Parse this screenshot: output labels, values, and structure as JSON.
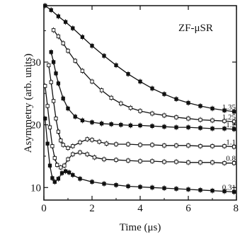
{
  "chart_data": {
    "type": "scatter",
    "title": "",
    "annotation": "ZF-μSR",
    "xlabel": "Time (μs)",
    "ylabel": "Asymmetry (arb. units)",
    "xlim": [
      0,
      8
    ],
    "ylim": [
      8,
      39
    ],
    "xticks": [
      "0",
      "2",
      "4",
      "6",
      "8"
    ],
    "yticks": [
      "10",
      "20",
      "30"
    ],
    "legend": "none",
    "grid": false,
    "series": [
      {
        "label": "1.35",
        "marker": "filled-square",
        "x": [
          0.05,
          0.3,
          0.6,
          0.9,
          1.2,
          1.6,
          2.0,
          2.5,
          3.0,
          3.5,
          4.0,
          4.5,
          5.0,
          5.5,
          6.0,
          6.5,
          7.0,
          7.5,
          7.9
        ],
        "y": [
          39.0,
          38.3,
          37.3,
          36.4,
          35.4,
          34.0,
          32.6,
          31.0,
          29.5,
          28.1,
          26.9,
          25.8,
          24.9,
          24.1,
          23.5,
          23.0,
          22.6,
          22.3,
          22.1
        ]
      },
      {
        "label": "1.25",
        "marker": "open-square",
        "x": [
          0.4,
          0.6,
          0.8,
          1.0,
          1.3,
          1.6,
          2.0,
          2.4,
          2.8,
          3.2,
          3.6,
          4.0,
          4.5,
          5.0,
          5.5,
          6.0,
          6.5,
          7.0,
          7.5,
          7.9
        ],
        "y": [
          35.1,
          34.1,
          33.0,
          31.8,
          30.2,
          28.6,
          26.9,
          25.5,
          24.3,
          23.4,
          22.7,
          22.2,
          21.8,
          21.5,
          21.2,
          21.0,
          20.8,
          20.7,
          20.6,
          20.5
        ]
      },
      {
        "label": "1.2",
        "marker": "filled-square",
        "x": [
          0.3,
          0.4,
          0.5,
          0.6,
          0.8,
          1.0,
          1.3,
          1.6,
          2.0,
          2.4,
          2.8,
          3.2,
          3.6,
          4.0,
          4.5,
          5.0,
          5.5,
          6.0,
          6.5,
          7.0,
          7.5,
          7.9
        ],
        "y": [
          31.6,
          30.0,
          28.2,
          26.6,
          24.2,
          22.6,
          21.3,
          20.7,
          20.4,
          20.2,
          20.1,
          20.0,
          19.9,
          19.9,
          19.8,
          19.7,
          19.6,
          19.6,
          19.5,
          19.4,
          19.4,
          19.3
        ]
      },
      {
        "label": "1.1",
        "marker": "open-square",
        "x": [
          0.2,
          0.3,
          0.4,
          0.5,
          0.6,
          0.7,
          0.8,
          1.0,
          1.2,
          1.5,
          1.8,
          2.0,
          2.3,
          2.6,
          3.0,
          3.5,
          4.0,
          4.5,
          5.0,
          5.5,
          6.0,
          6.5,
          7.0,
          7.5,
          7.9
        ],
        "y": [
          29.5,
          26.8,
          23.8,
          21.0,
          18.9,
          17.5,
          16.8,
          16.3,
          16.6,
          17.2,
          17.7,
          17.6,
          17.3,
          17.0,
          16.9,
          16.9,
          16.8,
          16.8,
          16.7,
          16.7,
          16.7,
          16.6,
          16.6,
          16.6,
          16.5
        ]
      },
      {
        "label": "0.8",
        "marker": "open-square",
        "x": [
          0.05,
          0.15,
          0.25,
          0.35,
          0.45,
          0.55,
          0.7,
          0.85,
          1.0,
          1.2,
          1.5,
          1.8,
          2.1,
          2.5,
          3.0,
          3.5,
          4.0,
          4.5,
          5.0,
          5.5,
          6.0,
          6.5,
          7.0,
          7.5,
          7.9
        ],
        "y": [
          26.2,
          23.0,
          19.6,
          16.6,
          14.7,
          13.6,
          13.2,
          13.5,
          14.5,
          15.3,
          15.6,
          15.3,
          14.8,
          14.5,
          14.4,
          14.3,
          14.2,
          14.2,
          14.1,
          14.1,
          14.0,
          14.0,
          14.0,
          13.9,
          13.9
        ]
      },
      {
        "label": "0.31",
        "marker": "filled-square",
        "x": [
          0.05,
          0.15,
          0.25,
          0.35,
          0.45,
          0.6,
          0.75,
          0.9,
          1.05,
          1.2,
          1.5,
          2.0,
          2.5,
          3.0,
          3.5,
          4.0,
          4.5,
          5.0,
          5.5,
          6.0,
          6.5,
          7.0,
          7.5,
          7.9
        ],
        "y": [
          21.0,
          17.0,
          13.5,
          11.5,
          10.9,
          11.4,
          12.3,
          12.6,
          12.4,
          12.0,
          11.4,
          10.9,
          10.6,
          10.4,
          10.2,
          10.1,
          10.0,
          9.9,
          9.8,
          9.7,
          9.6,
          9.5,
          9.4,
          9.3
        ]
      }
    ]
  }
}
